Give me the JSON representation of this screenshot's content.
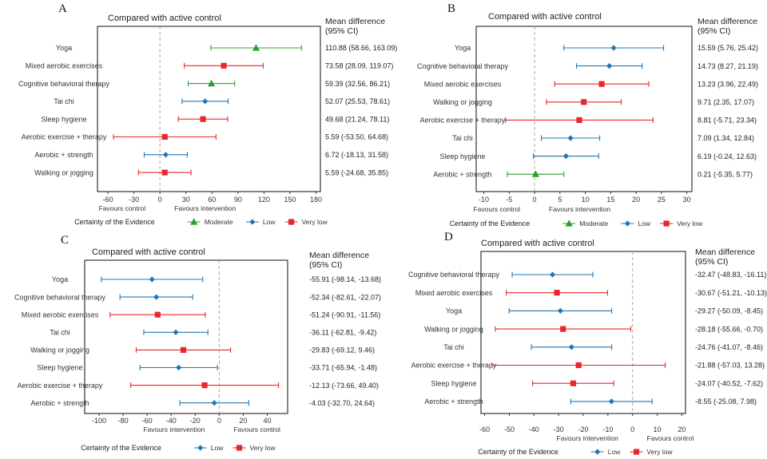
{
  "colors": {
    "Moderate": "#2ca02c",
    "Low": "#1f77b4",
    "Very low": "#e8262b",
    "zero_line": "#aaaaaa",
    "frame": "#222222"
  },
  "legend": {
    "title": "Certainty of the Evidence"
  },
  "chart_data": [
    {
      "type": "forest",
      "panel": "A",
      "title": "Compared with active control",
      "ci_header": [
        "Mean difference",
        "(95% CI)"
      ],
      "xlim": [
        -72,
        185
      ],
      "ticks": [
        -60,
        -30,
        0,
        30,
        60,
        90,
        120,
        150,
        180
      ],
      "favours_left": "Favours control",
      "favours_right": "Favours intervention",
      "legend_items": [
        "Moderate",
        "Low",
        "Very low"
      ],
      "rows": [
        {
          "label": "Yoga",
          "md": 110.88,
          "lo": 58.66,
          "hi": 163.09,
          "certainty": "Moderate",
          "ci_text": "110.88 (58.66, 163.09)"
        },
        {
          "label": "Mixed aerobic exercises",
          "md": 73.58,
          "lo": 28.09,
          "hi": 119.07,
          "certainty": "Very low",
          "ci_text": "73.58 (28.09, 119.07)"
        },
        {
          "label": "Cognitive behavioral therapy",
          "md": 59.39,
          "lo": 32.56,
          "hi": 86.21,
          "certainty": "Moderate",
          "ci_text": "59.39 (32.56, 86.21)"
        },
        {
          "label": "Tai chi",
          "md": 52.07,
          "lo": 25.53,
          "hi": 78.61,
          "certainty": "Low",
          "ci_text": "52.07 (25.53, 78.61)"
        },
        {
          "label": "Sleep hygiene",
          "md": 49.68,
          "lo": 21.24,
          "hi": 78.11,
          "certainty": "Very low",
          "ci_text": "49.68 (21.24, 78.11)"
        },
        {
          "label": "Aerobic exercise + therapy",
          "md": 5.59,
          "lo": -53.5,
          "hi": 64.68,
          "certainty": "Very low",
          "ci_text": "5.59 (-53.50, 64.68)"
        },
        {
          "label": "Aerobic + strength",
          "md": 6.72,
          "lo": -18.13,
          "hi": 31.58,
          "certainty": "Low",
          "ci_text": "6.72 (-18.13, 31.58)"
        },
        {
          "label": "Walking or jogging",
          "md": 5.59,
          "lo": -24.68,
          "hi": 35.85,
          "certainty": "Very low",
          "ci_text": "5.59 (-24.68, 35.85)"
        }
      ]
    },
    {
      "type": "forest",
      "panel": "B",
      "title": "Compared with active control",
      "ci_header": [
        "Mean difference",
        "(95% CI)"
      ],
      "xlim": [
        -11.5,
        31
      ],
      "ticks": [
        -10,
        -5,
        0,
        5,
        10,
        15,
        20,
        25,
        30
      ],
      "favours_left": "Favours control",
      "favours_right": "Favours intervention",
      "legend_items": [
        "Moderate",
        "Low",
        "Very low"
      ],
      "rows": [
        {
          "label": "Yoga",
          "md": 15.59,
          "lo": 5.76,
          "hi": 25.42,
          "certainty": "Low",
          "ci_text": "15.59 (5.76, 25.42)"
        },
        {
          "label": "Cognitive behavioral therapy",
          "md": 14.73,
          "lo": 8.27,
          "hi": 21.19,
          "certainty": "Low",
          "ci_text": "14.73 (8.27, 21.19)"
        },
        {
          "label": "Mixed aerobic exercises",
          "md": 13.23,
          "lo": 3.96,
          "hi": 22.49,
          "certainty": "Very low",
          "ci_text": "13.23 (3.96, 22.49)"
        },
        {
          "label": "Walking or jogging",
          "md": 9.71,
          "lo": 2.35,
          "hi": 17.07,
          "certainty": "Very low",
          "ci_text": "9.71 (2.35, 17.07)"
        },
        {
          "label": "Aerobic exercise + therapy",
          "md": 8.81,
          "lo": -5.71,
          "hi": 23.34,
          "certainty": "Very low",
          "ci_text": "8.81 (-5.71, 23.34)"
        },
        {
          "label": "Tai chi",
          "md": 7.09,
          "lo": 1.34,
          "hi": 12.84,
          "certainty": "Low",
          "ci_text": "7.09 (1.34, 12.84)"
        },
        {
          "label": "Sleep hygiene",
          "md": 6.19,
          "lo": -0.24,
          "hi": 12.63,
          "certainty": "Low",
          "ci_text": "6.19 (-0.24, 12.63)"
        },
        {
          "label": "Aerobic + strength",
          "md": 0.21,
          "lo": -5.35,
          "hi": 5.77,
          "certainty": "Moderate",
          "ci_text": "0.21 (-5.35, 5.77)"
        }
      ]
    },
    {
      "type": "forest",
      "panel": "C",
      "title": "Compared with active control",
      "ci_header": [
        "Mean difference",
        "(95% CI)"
      ],
      "xlim": [
        -112,
        57
      ],
      "ticks": [
        -100,
        -80,
        -60,
        -40,
        -20,
        0,
        20,
        40
      ],
      "favours_left": "Favours intervention",
      "favours_right": "Favours control",
      "legend_items": [
        "Low",
        "Very low"
      ],
      "rows": [
        {
          "label": "Yoga",
          "md": -55.91,
          "lo": -98.14,
          "hi": -13.68,
          "certainty": "Low",
          "ci_text": "-55.91 (-98.14, -13.68)"
        },
        {
          "label": "Cognitive behavioral therapy",
          "md": -52.34,
          "lo": -82.61,
          "hi": -22.07,
          "certainty": "Low",
          "ci_text": "-52.34 (-82.61, -22.07)"
        },
        {
          "label": "Mixed aerobic exercises",
          "md": -51.24,
          "lo": -90.91,
          "hi": -11.56,
          "certainty": "Very low",
          "ci_text": "-51.24 (-90.91, -11.56)"
        },
        {
          "label": "Tai chi",
          "md": -36.11,
          "lo": -62.81,
          "hi": -9.42,
          "certainty": "Low",
          "ci_text": "-36.11 (-62.81, -9.42)"
        },
        {
          "label": "Walking or jogging",
          "md": -29.83,
          "lo": -69.12,
          "hi": 9.46,
          "certainty": "Very low",
          "ci_text": "-29.83 (-69.12, 9.46)"
        },
        {
          "label": "Sleep hygiene",
          "md": -33.71,
          "lo": -65.94,
          "hi": -1.48,
          "certainty": "Low",
          "ci_text": "-33.71 (-65.94, -1.48)"
        },
        {
          "label": "Aerobic exercise + therapy",
          "md": -12.13,
          "lo": -73.66,
          "hi": 49.4,
          "certainty": "Very low",
          "ci_text": "-12.13 (-73.66, 49.40)"
        },
        {
          "label": "Aerobic + strength",
          "md": -4.03,
          "lo": -32.7,
          "hi": 24.64,
          "certainty": "Low",
          "ci_text": "-4.03 (-32.70, 24.64)"
        }
      ]
    },
    {
      "type": "forest",
      "panel": "D",
      "title": "Compared with active control",
      "ci_header": [
        "Mean difference",
        "(95% CI)"
      ],
      "xlim": [
        -61.5,
        21.5
      ],
      "ticks": [
        -60,
        -50,
        -40,
        -30,
        -20,
        -10,
        0,
        10,
        20
      ],
      "favours_left": "Favours intervention",
      "favours_right": "Favours control",
      "legend_items": [
        "Low",
        "Very low"
      ],
      "rows": [
        {
          "label": "Cognitive behavioral therapy",
          "md": -32.47,
          "lo": -48.83,
          "hi": -16.11,
          "certainty": "Low",
          "ci_text": "-32.47 (-48.83, -16.11)"
        },
        {
          "label": "Mixed aerobic exercises",
          "md": -30.67,
          "lo": -51.21,
          "hi": -10.13,
          "certainty": "Very low",
          "ci_text": "-30.67 (-51.21, -10.13)"
        },
        {
          "label": "Yoga",
          "md": -29.27,
          "lo": -50.09,
          "hi": -8.45,
          "certainty": "Low",
          "ci_text": "-29.27 (-50.09, -8.45)"
        },
        {
          "label": "Walking or jogging",
          "md": -28.18,
          "lo": -55.66,
          "hi": -0.7,
          "certainty": "Very low",
          "ci_text": "-28.18 (-55.66, -0.70)"
        },
        {
          "label": "Tai chi",
          "md": -24.76,
          "lo": -41.07,
          "hi": -8.46,
          "certainty": "Low",
          "ci_text": "-24.76 (-41.07, -8.46)"
        },
        {
          "label": "Aerobic exercise + therapy",
          "md": -21.88,
          "lo": -57.03,
          "hi": 13.28,
          "certainty": "Very low",
          "ci_text": "-21.88 (-57.03, 13.28)"
        },
        {
          "label": "Sleep hygiene",
          "md": -24.07,
          "lo": -40.52,
          "hi": -7.62,
          "certainty": "Very low",
          "ci_text": "-24.07 (-40.52, -7.62)"
        },
        {
          "label": "Aerobic + strength",
          "md": -8.55,
          "lo": -25.08,
          "hi": 7.98,
          "certainty": "Low",
          "ci_text": "-8.55 (-25.08, 7.98)"
        }
      ]
    }
  ]
}
